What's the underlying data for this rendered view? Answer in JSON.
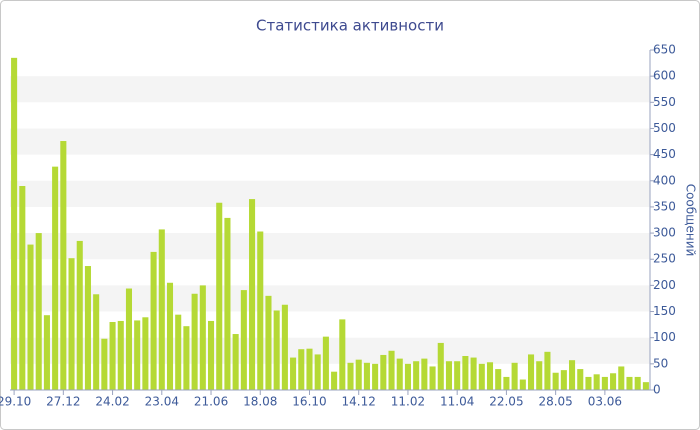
{
  "chart_data": {
    "type": "bar",
    "title": "Статистика активности",
    "y_label": "Сообщений",
    "categories": [
      "29.10",
      null,
      null,
      null,
      null,
      null,
      "27.12",
      null,
      null,
      null,
      null,
      null,
      "24.02",
      null,
      null,
      null,
      null,
      null,
      "23.04",
      null,
      null,
      null,
      null,
      null,
      "21.06",
      null,
      null,
      null,
      null,
      null,
      "18.08",
      null,
      null,
      null,
      null,
      null,
      "16.10",
      null,
      null,
      null,
      null,
      null,
      "14.12",
      null,
      null,
      null,
      null,
      null,
      "11.02",
      null,
      null,
      null,
      null,
      null,
      "11.04",
      null,
      null,
      null,
      null,
      null,
      "22.05",
      null,
      null,
      null,
      null,
      null,
      "28.05",
      null,
      null,
      null,
      null,
      null,
      "03.06",
      null,
      null,
      null,
      null,
      null
    ],
    "values": [
      635,
      390,
      278,
      300,
      143,
      427,
      476,
      252,
      285,
      237,
      183,
      98,
      130,
      132,
      194,
      133,
      139,
      264,
      307,
      205,
      144,
      122,
      184,
      200,
      132,
      358,
      329,
      107,
      191,
      365,
      303,
      180,
      152,
      163,
      62,
      78,
      79,
      68,
      102,
      35,
      135,
      52,
      58,
      52,
      50,
      67,
      75,
      60,
      50,
      55,
      60,
      45,
      90,
      55,
      55,
      65,
      62,
      50,
      53,
      40,
      25,
      52,
      20,
      68,
      55,
      73,
      33,
      38,
      57,
      40,
      25,
      30,
      25,
      32,
      45,
      25,
      25,
      15
    ],
    "color": "#b5d935",
    "ylim": [
      0,
      650
    ],
    "yticks": [
      0,
      50,
      100,
      150,
      200,
      250,
      300,
      350,
      400,
      450,
      500,
      550,
      600,
      650
    ],
    "grid": true
  }
}
